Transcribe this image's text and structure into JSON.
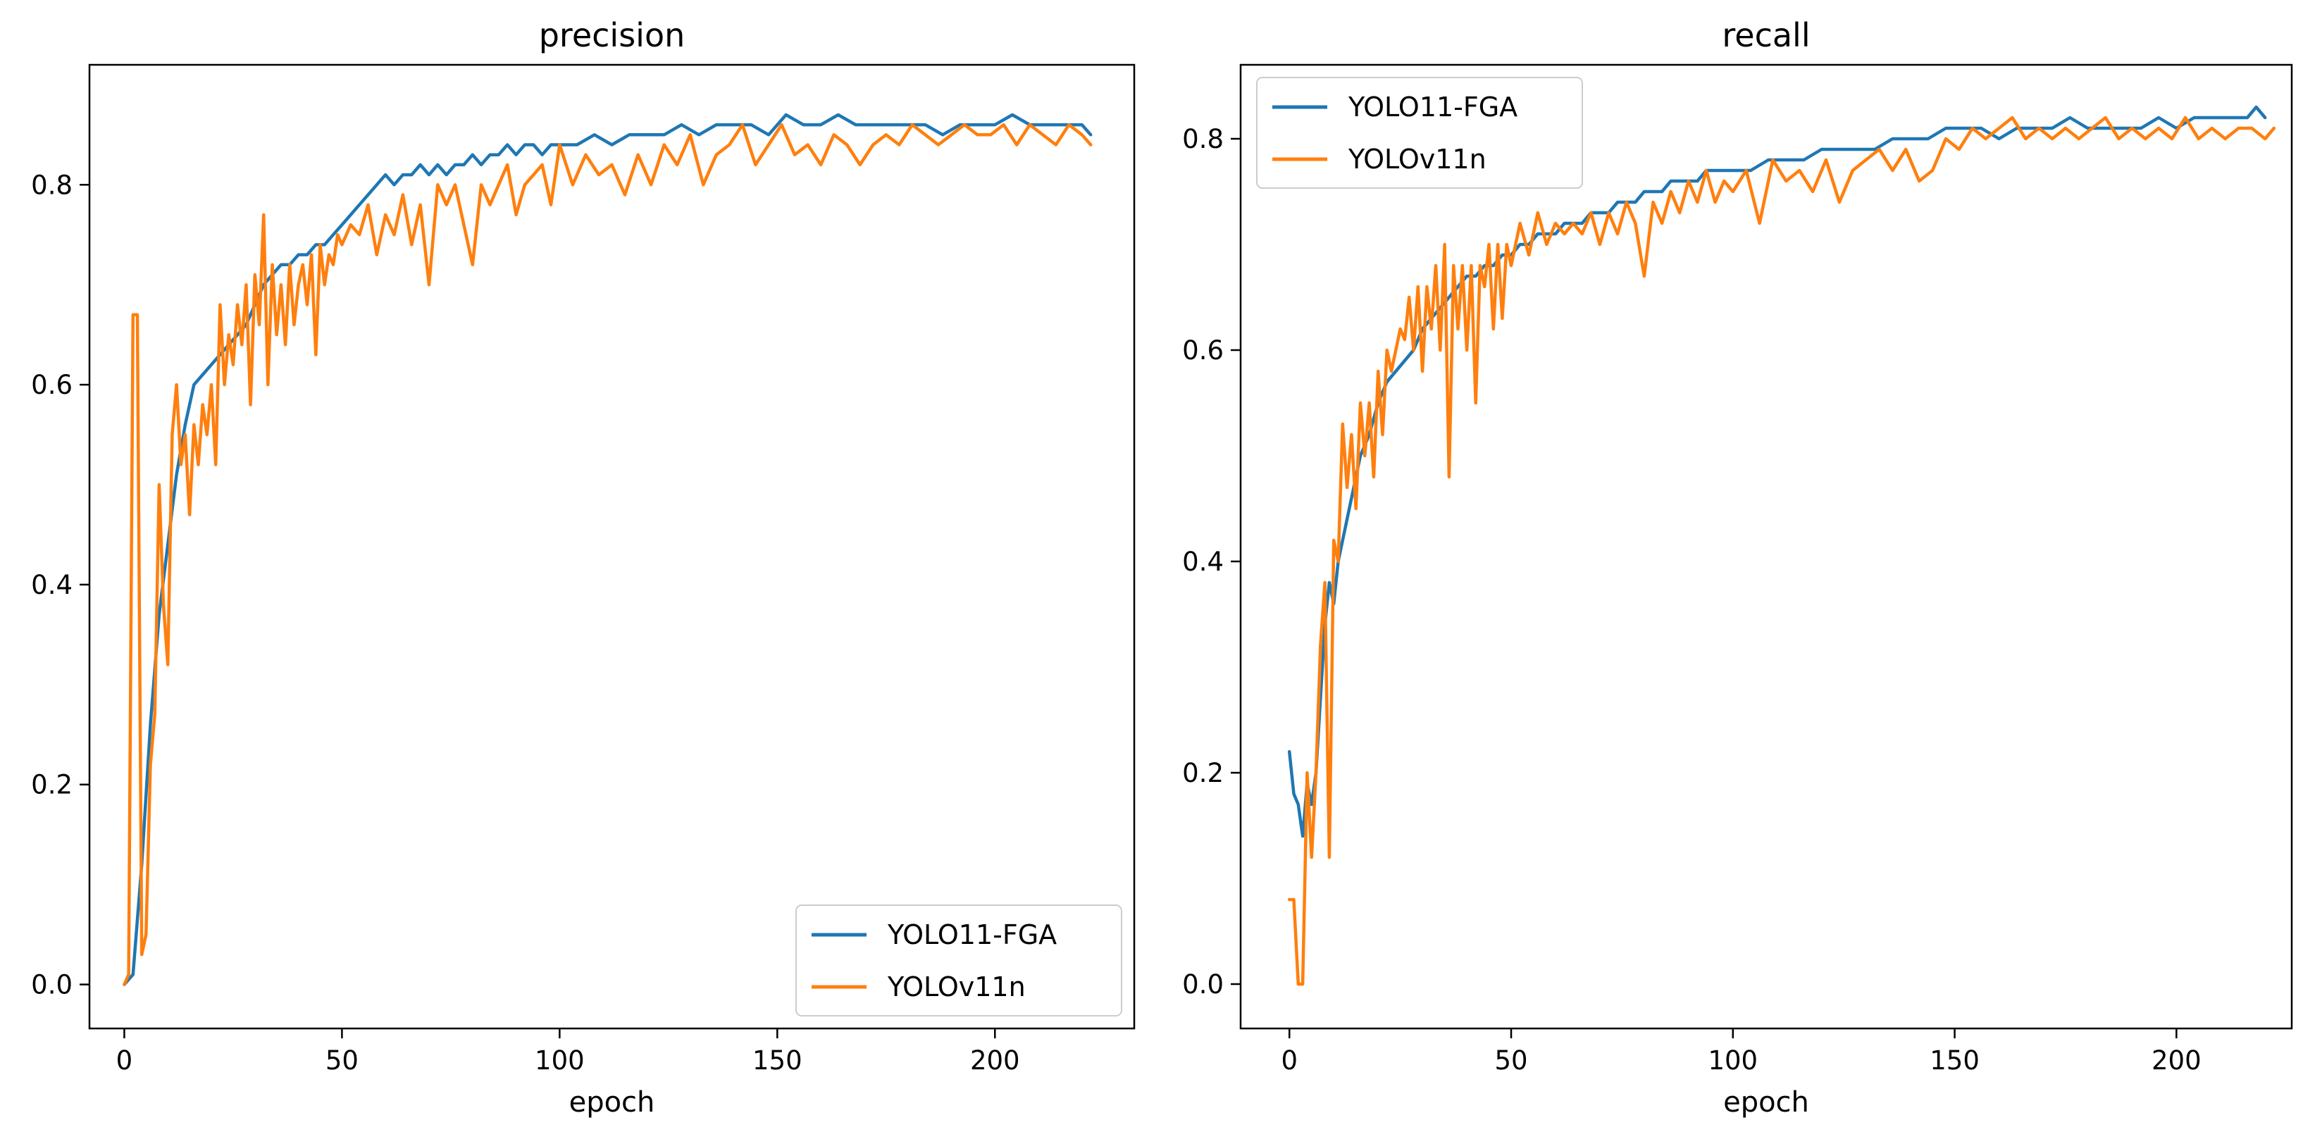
{
  "chart_data": [
    {
      "type": "line",
      "title": "precision",
      "xlabel": "epoch",
      "ylabel": "",
      "xlim": [
        -8,
        232
      ],
      "ylim": [
        -0.044,
        0.92
      ],
      "xticks": [
        0,
        50,
        100,
        150,
        200
      ],
      "yticks": [
        0.0,
        0.2,
        0.4,
        0.6,
        0.8
      ],
      "xtick_labels": [
        "0",
        "50",
        "100",
        "150",
        "200"
      ],
      "ytick_labels": [
        "0.0",
        "0.2",
        "0.4",
        "0.6",
        "0.8"
      ],
      "legend_position": "lower-right",
      "series": [
        {
          "name": "YOLO11-FGA",
          "color": "#1f77b4",
          "x": [
            0,
            2,
            4,
            6,
            8,
            10,
            12,
            14,
            16,
            18,
            20,
            22,
            24,
            26,
            28,
            30,
            32,
            34,
            36,
            38,
            40,
            42,
            44,
            46,
            48,
            50,
            52,
            54,
            56,
            58,
            60,
            62,
            64,
            66,
            68,
            70,
            72,
            74,
            76,
            78,
            80,
            82,
            84,
            86,
            88,
            90,
            92,
            94,
            96,
            98,
            100,
            104,
            108,
            112,
            116,
            120,
            124,
            128,
            132,
            136,
            140,
            144,
            148,
            152,
            156,
            160,
            164,
            168,
            172,
            176,
            180,
            184,
            188,
            192,
            196,
            200,
            204,
            208,
            212,
            216,
            220,
            222
          ],
          "y": [
            0.0,
            0.01,
            0.12,
            0.26,
            0.37,
            0.44,
            0.51,
            0.56,
            0.6,
            0.61,
            0.62,
            0.63,
            0.64,
            0.65,
            0.66,
            0.68,
            0.7,
            0.71,
            0.72,
            0.72,
            0.73,
            0.73,
            0.74,
            0.74,
            0.75,
            0.76,
            0.77,
            0.78,
            0.79,
            0.8,
            0.81,
            0.8,
            0.81,
            0.81,
            0.82,
            0.81,
            0.82,
            0.81,
            0.82,
            0.82,
            0.83,
            0.82,
            0.83,
            0.83,
            0.84,
            0.83,
            0.84,
            0.84,
            0.83,
            0.84,
            0.84,
            0.84,
            0.85,
            0.84,
            0.85,
            0.85,
            0.85,
            0.86,
            0.85,
            0.86,
            0.86,
            0.86,
            0.85,
            0.87,
            0.86,
            0.86,
            0.87,
            0.86,
            0.86,
            0.86,
            0.86,
            0.86,
            0.85,
            0.86,
            0.86,
            0.86,
            0.87,
            0.86,
            0.86,
            0.86,
            0.86,
            0.85
          ]
        },
        {
          "name": "YOLOv11n",
          "color": "#ff7f0e",
          "x": [
            0,
            1,
            2,
            3,
            4,
            5,
            6,
            7,
            8,
            9,
            10,
            11,
            12,
            13,
            14,
            15,
            16,
            17,
            18,
            19,
            20,
            21,
            22,
            23,
            24,
            25,
            26,
            27,
            28,
            29,
            30,
            31,
            32,
            33,
            34,
            35,
            36,
            37,
            38,
            39,
            40,
            41,
            42,
            43,
            44,
            45,
            46,
            47,
            48,
            49,
            50,
            52,
            54,
            56,
            58,
            60,
            62,
            64,
            66,
            68,
            70,
            72,
            74,
            76,
            78,
            80,
            82,
            84,
            86,
            88,
            90,
            92,
            94,
            96,
            98,
            100,
            103,
            106,
            109,
            112,
            115,
            118,
            121,
            124,
            127,
            130,
            133,
            136,
            139,
            142,
            145,
            148,
            151,
            154,
            157,
            160,
            163,
            166,
            169,
            172,
            175,
            178,
            181,
            184,
            187,
            190,
            193,
            196,
            199,
            202,
            205,
            208,
            211,
            214,
            217,
            220,
            222
          ],
          "y": [
            0.0,
            0.01,
            0.67,
            0.67,
            0.03,
            0.05,
            0.22,
            0.27,
            0.5,
            0.38,
            0.32,
            0.55,
            0.6,
            0.52,
            0.55,
            0.47,
            0.56,
            0.52,
            0.58,
            0.55,
            0.6,
            0.52,
            0.68,
            0.6,
            0.65,
            0.62,
            0.68,
            0.64,
            0.7,
            0.58,
            0.71,
            0.66,
            0.77,
            0.6,
            0.72,
            0.65,
            0.7,
            0.64,
            0.72,
            0.66,
            0.7,
            0.72,
            0.68,
            0.73,
            0.63,
            0.74,
            0.7,
            0.73,
            0.72,
            0.75,
            0.74,
            0.76,
            0.75,
            0.78,
            0.73,
            0.77,
            0.75,
            0.79,
            0.74,
            0.78,
            0.7,
            0.8,
            0.78,
            0.8,
            0.76,
            0.72,
            0.8,
            0.78,
            0.8,
            0.82,
            0.77,
            0.8,
            0.81,
            0.82,
            0.78,
            0.84,
            0.8,
            0.83,
            0.81,
            0.82,
            0.79,
            0.83,
            0.8,
            0.84,
            0.82,
            0.85,
            0.8,
            0.83,
            0.84,
            0.86,
            0.82,
            0.84,
            0.86,
            0.83,
            0.84,
            0.82,
            0.85,
            0.84,
            0.82,
            0.84,
            0.85,
            0.84,
            0.86,
            0.85,
            0.84,
            0.85,
            0.86,
            0.85,
            0.85,
            0.86,
            0.84,
            0.86,
            0.85,
            0.84,
            0.86,
            0.85,
            0.84
          ]
        }
      ]
    },
    {
      "type": "line",
      "title": "recall",
      "xlabel": "epoch",
      "ylabel": "",
      "xlim": [
        -11,
        226
      ],
      "ylim": [
        -0.042,
        0.87
      ],
      "xticks": [
        0,
        50,
        100,
        150,
        200
      ],
      "yticks": [
        0.0,
        0.2,
        0.4,
        0.6,
        0.8
      ],
      "xtick_labels": [
        "0",
        "50",
        "100",
        "150",
        "200"
      ],
      "ytick_labels": [
        "0.0",
        "0.2",
        "0.4",
        "0.6",
        "0.8"
      ],
      "legend_position": "upper-left",
      "series": [
        {
          "name": "YOLO11-FGA",
          "color": "#1f77b4",
          "x": [
            0,
            1,
            2,
            3,
            4,
            5,
            6,
            7,
            8,
            9,
            10,
            11,
            12,
            14,
            16,
            18,
            20,
            22,
            24,
            26,
            28,
            30,
            32,
            34,
            36,
            38,
            40,
            42,
            44,
            46,
            48,
            50,
            52,
            54,
            56,
            58,
            60,
            62,
            64,
            66,
            68,
            70,
            72,
            74,
            76,
            78,
            80,
            82,
            84,
            86,
            88,
            90,
            92,
            94,
            96,
            98,
            100,
            104,
            108,
            112,
            116,
            120,
            124,
            128,
            132,
            136,
            140,
            144,
            148,
            152,
            156,
            160,
            164,
            168,
            172,
            176,
            180,
            184,
            188,
            192,
            196,
            200,
            204,
            208,
            212,
            216,
            218,
            220
          ],
          "y": [
            0.22,
            0.18,
            0.17,
            0.14,
            0.19,
            0.17,
            0.2,
            0.27,
            0.34,
            0.38,
            0.36,
            0.4,
            0.42,
            0.46,
            0.5,
            0.52,
            0.55,
            0.57,
            0.58,
            0.59,
            0.6,
            0.62,
            0.63,
            0.64,
            0.65,
            0.66,
            0.67,
            0.67,
            0.68,
            0.68,
            0.69,
            0.69,
            0.7,
            0.7,
            0.71,
            0.71,
            0.71,
            0.72,
            0.72,
            0.72,
            0.73,
            0.73,
            0.73,
            0.74,
            0.74,
            0.74,
            0.75,
            0.75,
            0.75,
            0.76,
            0.76,
            0.76,
            0.76,
            0.77,
            0.77,
            0.77,
            0.77,
            0.77,
            0.78,
            0.78,
            0.78,
            0.79,
            0.79,
            0.79,
            0.79,
            0.8,
            0.8,
            0.8,
            0.81,
            0.81,
            0.81,
            0.8,
            0.81,
            0.81,
            0.81,
            0.82,
            0.81,
            0.81,
            0.81,
            0.81,
            0.82,
            0.81,
            0.82,
            0.82,
            0.82,
            0.82,
            0.83,
            0.82
          ]
        },
        {
          "name": "YOLOv11n",
          "color": "#ff7f0e",
          "x": [
            0,
            1,
            2,
            3,
            4,
            5,
            6,
            7,
            8,
            9,
            10,
            11,
            12,
            13,
            14,
            15,
            16,
            17,
            18,
            19,
            20,
            21,
            22,
            23,
            24,
            25,
            26,
            27,
            28,
            29,
            30,
            31,
            32,
            33,
            34,
            35,
            36,
            37,
            38,
            39,
            40,
            41,
            42,
            43,
            44,
            45,
            46,
            47,
            48,
            49,
            50,
            52,
            54,
            56,
            58,
            60,
            62,
            64,
            66,
            68,
            70,
            72,
            74,
            76,
            78,
            80,
            82,
            84,
            86,
            88,
            90,
            92,
            94,
            96,
            98,
            100,
            103,
            106,
            109,
            112,
            115,
            118,
            121,
            124,
            127,
            130,
            133,
            136,
            139,
            142,
            145,
            148,
            151,
            154,
            157,
            160,
            163,
            166,
            169,
            172,
            175,
            178,
            181,
            184,
            187,
            190,
            193,
            196,
            199,
            202,
            205,
            208,
            211,
            214,
            217,
            220,
            222
          ],
          "y": [
            0.08,
            0.08,
            0.0,
            0.0,
            0.2,
            0.12,
            0.2,
            0.32,
            0.38,
            0.12,
            0.42,
            0.4,
            0.53,
            0.47,
            0.52,
            0.45,
            0.55,
            0.5,
            0.55,
            0.48,
            0.58,
            0.52,
            0.6,
            0.58,
            0.6,
            0.62,
            0.61,
            0.65,
            0.6,
            0.66,
            0.58,
            0.66,
            0.62,
            0.68,
            0.6,
            0.7,
            0.48,
            0.68,
            0.62,
            0.68,
            0.6,
            0.68,
            0.55,
            0.68,
            0.66,
            0.7,
            0.62,
            0.7,
            0.63,
            0.7,
            0.68,
            0.72,
            0.69,
            0.73,
            0.7,
            0.72,
            0.71,
            0.72,
            0.71,
            0.73,
            0.7,
            0.73,
            0.71,
            0.74,
            0.72,
            0.67,
            0.74,
            0.72,
            0.75,
            0.73,
            0.76,
            0.74,
            0.77,
            0.74,
            0.76,
            0.75,
            0.77,
            0.72,
            0.78,
            0.76,
            0.77,
            0.75,
            0.78,
            0.74,
            0.77,
            0.78,
            0.79,
            0.77,
            0.79,
            0.76,
            0.77,
            0.8,
            0.79,
            0.81,
            0.8,
            0.81,
            0.82,
            0.8,
            0.81,
            0.8,
            0.81,
            0.8,
            0.81,
            0.82,
            0.8,
            0.81,
            0.8,
            0.81,
            0.8,
            0.82,
            0.8,
            0.81,
            0.8,
            0.81,
            0.81,
            0.8,
            0.81
          ]
        }
      ]
    }
  ]
}
